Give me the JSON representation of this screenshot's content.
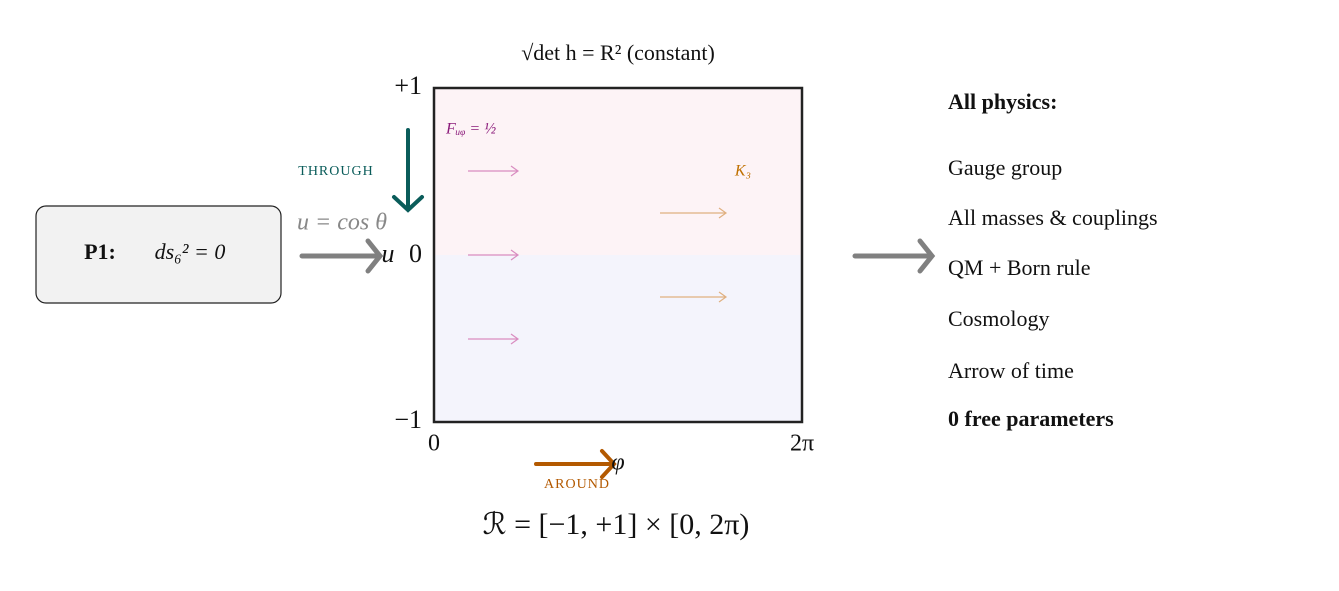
{
  "box": {
    "title": "P1:",
    "equation": "ds₆² = 0"
  },
  "region": {
    "top_label": "√det h = R² (constant)",
    "u_top": "+1",
    "u_mid": "0",
    "u_bottom": "−1",
    "phi_left": "0",
    "phi_right": "2π",
    "u_axis": "u",
    "phi_axis": "φ",
    "u_definition": "u = cos θ",
    "through": "THROUGH",
    "around": "AROUND",
    "field": "Fᵤᵩ = ½",
    "killing": "K₃",
    "definition": "ℛ = [−1, +1] × [0, 2π)"
  },
  "outputs": {
    "heading": "All physics:",
    "items": [
      "Gauge group",
      "All masses & couplings",
      "QM + Born rule",
      "Cosmology",
      "Arrow of time"
    ],
    "footer": "0 free parameters"
  }
}
